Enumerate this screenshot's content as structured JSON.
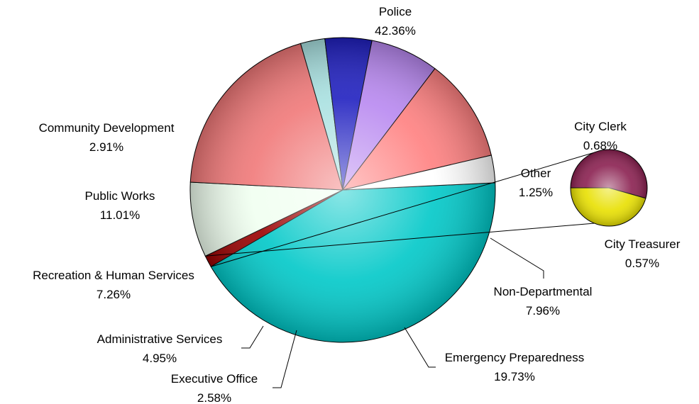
{
  "chart_data": {
    "type": "pie",
    "title": "",
    "legend": "none",
    "slices": [
      {
        "label": "Police",
        "value": 42.36,
        "value_label": "42.36%",
        "color": "#00c8c8"
      },
      {
        "label": "Other",
        "value": 1.25,
        "value_label": "1.25%",
        "color": "#9a0000"
      },
      {
        "label": "Non-Departmental",
        "value": 7.96,
        "value_label": "7.96%",
        "color": "#f0fff0"
      },
      {
        "label": "Emergency Preparedness",
        "value": 19.73,
        "value_label": "19.73%",
        "color": "#f07878"
      },
      {
        "label": "Executive Office",
        "value": 2.58,
        "value_label": "2.58%",
        "color": "#a8e0e0"
      },
      {
        "label": "Administrative Services",
        "value": 4.95,
        "value_label": "4.95%",
        "color": "#2020c0"
      },
      {
        "label": "Recreation & Human Services",
        "value": 7.26,
        "value_label": "7.26%",
        "color": "#b888f0"
      },
      {
        "label": "Public Works",
        "value": 11.01,
        "value_label": "11.01%",
        "color": "#ff8080"
      },
      {
        "label": "Community Development",
        "value": 2.91,
        "value_label": "2.91%",
        "color": "#ffffff"
      }
    ],
    "breakout": {
      "of": "Other",
      "slices": [
        {
          "label": "City Clerk",
          "value": 0.68,
          "value_label": "0.68%",
          "color": "#8a2050"
        },
        {
          "label": "City Treasurer",
          "value": 0.57,
          "value_label": "0.57%",
          "color": "#e8e000"
        }
      ]
    }
  }
}
